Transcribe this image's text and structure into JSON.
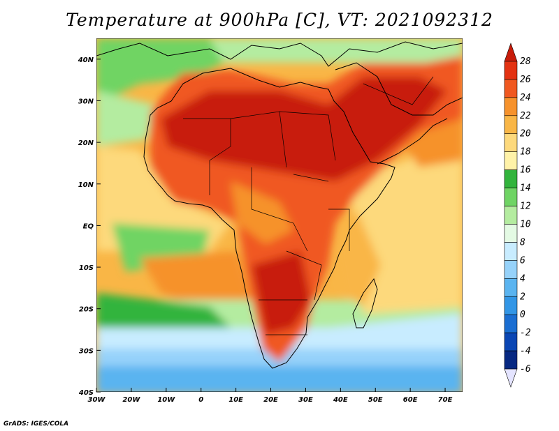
{
  "map": {
    "title": "Temperature at 900hPa [C], VT: 2021092312",
    "credit": "GrADS: IGES/COLA",
    "lon_labels": [
      "30W",
      "20W",
      "10W",
      "0",
      "10E",
      "20E",
      "30E",
      "40E",
      "50E",
      "60E",
      "70E"
    ],
    "lat_labels": [
      "40N",
      "30N",
      "20N",
      "10N",
      "EQ",
      "10S",
      "20S",
      "30S",
      "40S"
    ],
    "lon_range": [
      -30,
      75
    ],
    "lat_range": [
      -40,
      45
    ],
    "colorbar": {
      "levels": [
        28,
        26,
        24,
        22,
        20,
        18,
        16,
        14,
        12,
        10,
        8,
        6,
        4,
        2,
        0,
        -2,
        -4,
        -6
      ],
      "colors": [
        "#c81c0a",
        "#e33212",
        "#f05820",
        "#f6922c",
        "#f9b646",
        "#fdd97c",
        "#fff2a8",
        "#32b43c",
        "#6fd464",
        "#b4eca0",
        "#e4fae4",
        "#c8ecff",
        "#96d2fa",
        "#5ab4f0",
        "#3296e6",
        "#1a6ed2",
        "#0a46b4",
        "#062882",
        "#e4e4ff"
      ]
    }
  }
}
